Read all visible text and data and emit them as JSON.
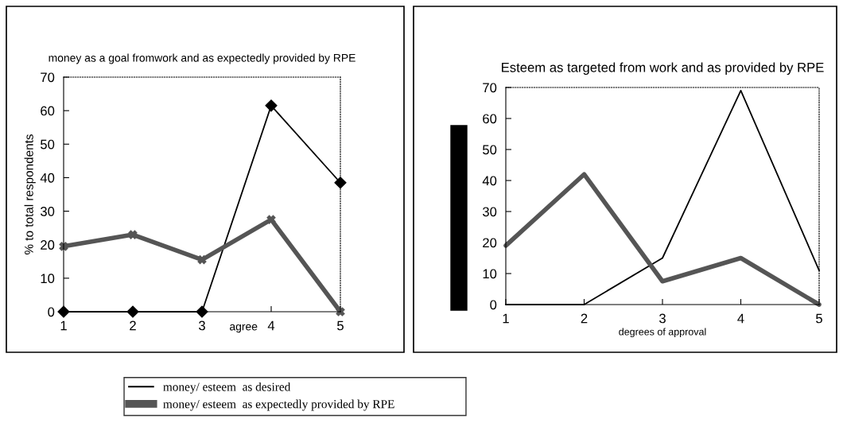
{
  "chart_data": [
    {
      "type": "line",
      "title": "money as a goal fromwork and as expectedly provided by RPE",
      "xlabel": "agree",
      "ylabel": "% to total respondents",
      "categories": [
        "1",
        "2",
        "3",
        "4",
        "5"
      ],
      "ylim": [
        0,
        70
      ],
      "yticks": [
        0,
        10,
        20,
        30,
        40,
        50,
        60,
        70
      ],
      "legend": "bottom",
      "series": [
        {
          "name": "money/ esteem  as desired",
          "color": "#000000",
          "values": [
            0,
            0,
            0,
            61.5,
            38.5
          ],
          "marker": "diamond"
        },
        {
          "name": "money/ esteem  as expectedly provided by RPE",
          "color": "#555555",
          "values": [
            19.5,
            23,
            15.5,
            27.5,
            0
          ],
          "marker": "cross"
        }
      ]
    },
    {
      "type": "line",
      "title": "Esteem as targeted from work and as provided by RPE",
      "xlabel": "degrees of approval",
      "categories": [
        "1",
        "2",
        "3",
        "4",
        "5"
      ],
      "ylim": [
        0,
        70
      ],
      "yticks": [
        0,
        10,
        20,
        30,
        40,
        50,
        60,
        70
      ],
      "series": [
        {
          "color": "#000000",
          "values": [
            0,
            0,
            15,
            69,
            11
          ]
        },
        {
          "color": "#555555",
          "values": [
            19,
            42,
            7.5,
            15,
            0
          ]
        }
      ]
    }
  ]
}
